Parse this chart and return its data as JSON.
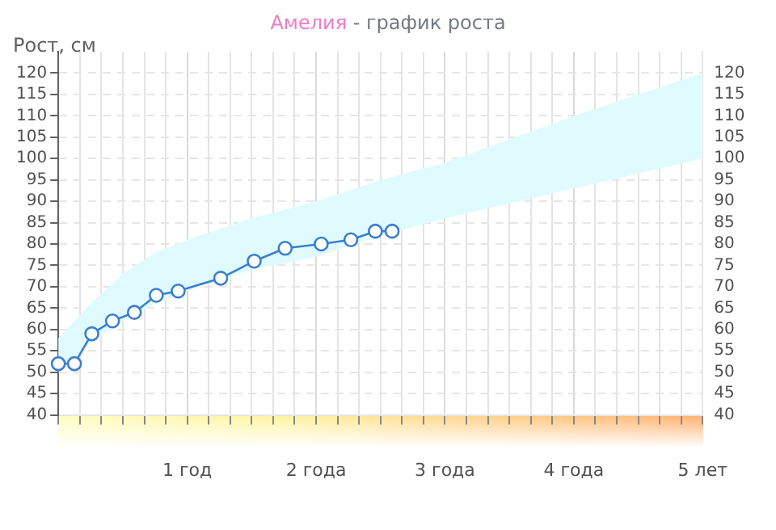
{
  "chart_data": {
    "type": "line",
    "title": "Амелия - график роста",
    "ylabel": "Рост, см",
    "xlim": [
      0,
      5
    ],
    "xticks": [
      {
        "value": 0,
        "label": null
      },
      {
        "value": 0.167,
        "label": null
      },
      {
        "value": 0.333,
        "label": null
      },
      {
        "value": 0.5,
        "label": null
      },
      {
        "value": 0.667,
        "label": null
      },
      {
        "value": 0.833,
        "label": null
      },
      {
        "value": 1,
        "label": "1 год"
      },
      {
        "value": 1.167,
        "label": null
      },
      {
        "value": 1.333,
        "label": null
      },
      {
        "value": 1.5,
        "label": null
      },
      {
        "value": 1.667,
        "label": null
      },
      {
        "value": 1.833,
        "label": null
      },
      {
        "value": 2,
        "label": "2 года"
      },
      {
        "value": 2.167,
        "label": null
      },
      {
        "value": 2.333,
        "label": null
      },
      {
        "value": 2.5,
        "label": null
      },
      {
        "value": 2.667,
        "label": null
      },
      {
        "value": 2.833,
        "label": null
      },
      {
        "value": 3,
        "label": "3 года"
      },
      {
        "value": 3.167,
        "label": null
      },
      {
        "value": 3.333,
        "label": null
      },
      {
        "value": 3.5,
        "label": null
      },
      {
        "value": 3.667,
        "label": null
      },
      {
        "value": 3.833,
        "label": null
      },
      {
        "value": 4,
        "label": "4 года"
      },
      {
        "value": 4.167,
        "label": null
      },
      {
        "value": 4.333,
        "label": null
      },
      {
        "value": 4.5,
        "label": null
      },
      {
        "value": 4.667,
        "label": null
      },
      {
        "value": 4.833,
        "label": null
      },
      {
        "value": 5,
        "label": "5 лет"
      }
    ],
    "ylim": [
      40,
      125
    ],
    "yticks": [
      40,
      45,
      50,
      55,
      60,
      65,
      70,
      75,
      80,
      85,
      90,
      95,
      100,
      105,
      110,
      115,
      120
    ],
    "y2lim": [
      40,
      125
    ],
    "y2ticks": [
      40,
      45,
      50,
      55,
      60,
      65,
      70,
      75,
      80,
      85,
      90,
      95,
      100,
      105,
      110,
      115,
      120
    ],
    "series": [
      {
        "type": "line",
        "color": "#3a7fd0",
        "x": [
          0,
          0.125,
          0.26,
          0.42,
          0.59,
          0.76,
          0.93,
          1.26,
          1.52,
          1.76,
          2.04,
          2.27,
          2.46,
          2.59
        ],
        "values": [
          52,
          52,
          59,
          62,
          64,
          68,
          69,
          72,
          76,
          79,
          80,
          81,
          83,
          83
        ]
      },
      {
        "type": "area",
        "color": "#e0fbff",
        "x": [
          0,
          0.25,
          0.5,
          0.75,
          1,
          1.5,
          2,
          2.5,
          3,
          4,
          5
        ],
        "values": [
          null,
          null,
          null,
          null,
          null,
          null,
          null,
          null,
          null,
          null,
          null
        ],
        "lower": [
          50,
          57,
          62,
          66,
          69,
          74,
          77,
          82,
          86,
          93,
          100
        ],
        "upper": [
          58,
          66,
          73,
          78,
          81,
          86,
          90,
          95,
          99,
          110,
          120
        ]
      }
    ],
    "grid": true,
    "legend": false,
    "marker": "circle",
    "line_style": "solid"
  }
}
